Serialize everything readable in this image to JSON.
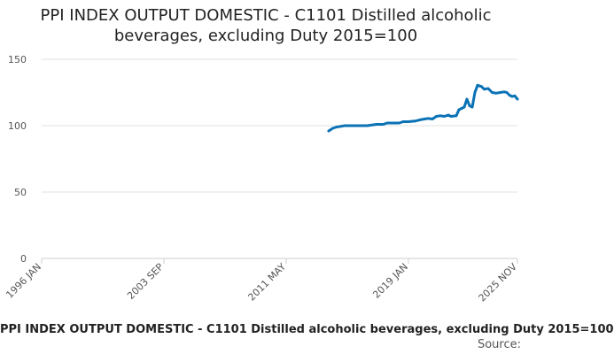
{
  "title": "PPI INDEX OUTPUT DOMESTIC - C1101 Distilled alcoholic beverages, excluding Duty 2015=100",
  "caption": "PPI INDEX OUTPUT DOMESTIC - C1101 Distilled alcoholic beverages, excluding Duty 2015=100",
  "source_label": "Source:",
  "chart_data": {
    "type": "line",
    "title": "PPI INDEX OUTPUT DOMESTIC - C1101 Distilled alcoholic beverages, excluding Duty 2015=100",
    "xlabel": "",
    "ylabel": "",
    "x_ticks": [
      "1996 JAN",
      "2003 SEP",
      "2011 MAY",
      "2019 JAN",
      "2025 NOV"
    ],
    "xlim": [
      "1996-01",
      "2025-11"
    ],
    "y_ticks": [
      0,
      50,
      100,
      150
    ],
    "ylim": [
      0,
      150
    ],
    "grid": "horizontal",
    "line_color": "#0a72b5",
    "series": [
      {
        "points": [
          [
            "2014-01",
            96
          ],
          [
            "2014-04",
            98
          ],
          [
            "2014-07",
            99
          ],
          [
            "2014-10",
            99.5
          ],
          [
            "2015-01",
            100
          ],
          [
            "2015-06",
            100
          ],
          [
            "2016-01",
            100
          ],
          [
            "2016-06",
            100
          ],
          [
            "2017-01",
            101
          ],
          [
            "2017-06",
            101
          ],
          [
            "2017-09",
            102
          ],
          [
            "2018-01",
            102
          ],
          [
            "2018-06",
            102
          ],
          [
            "2018-09",
            103
          ],
          [
            "2019-01",
            103
          ],
          [
            "2019-06",
            103.5
          ],
          [
            "2019-10",
            104.5
          ],
          [
            "2020-01",
            105
          ],
          [
            "2020-04",
            105.5
          ],
          [
            "2020-07",
            105
          ],
          [
            "2020-10",
            107
          ],
          [
            "2021-01",
            107.5
          ],
          [
            "2021-04",
            107
          ],
          [
            "2021-07",
            108
          ],
          [
            "2021-09",
            107
          ],
          [
            "2022-01",
            107.5
          ],
          [
            "2022-03",
            112
          ],
          [
            "2022-07",
            114
          ],
          [
            "2022-09",
            120
          ],
          [
            "2022-11",
            115
          ],
          [
            "2023-01",
            114
          ],
          [
            "2023-03",
            125
          ],
          [
            "2023-05",
            130.5
          ],
          [
            "2023-08",
            129.5
          ],
          [
            "2023-10",
            127.5
          ],
          [
            "2024-01",
            128
          ],
          [
            "2024-04",
            125
          ],
          [
            "2024-07",
            124.5
          ],
          [
            "2024-10",
            125
          ],
          [
            "2025-01",
            125.5
          ],
          [
            "2025-03",
            125
          ],
          [
            "2025-05",
            123
          ],
          [
            "2025-07",
            122
          ],
          [
            "2025-09",
            122.5
          ],
          [
            "2025-11",
            120
          ]
        ]
      }
    ]
  }
}
